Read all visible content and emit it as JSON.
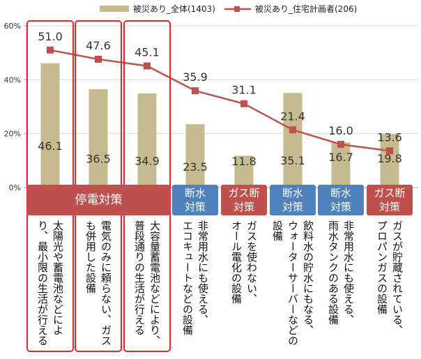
{
  "legend": {
    "bar_label": "被災あり_全体(1403)",
    "line_label": "被災あり_住宅計画者(206)"
  },
  "colors": {
    "bar": "#c6bb8e",
    "line": "#c0504d",
    "power_group": "#c0504d",
    "water_group": "#4f81bd",
    "gas_group": "#c0504d",
    "highlight_border": "#e8232a"
  },
  "groups": [
    {
      "label": "停電対策"
    },
    {
      "label": "断水\n対策"
    },
    {
      "label": "ガス断\n対策"
    },
    {
      "label": "断水\n対策"
    },
    {
      "label": "断水\n対策"
    },
    {
      "label": "ガス断\n対策"
    }
  ],
  "descriptions": [
    "太陽光や蓄電池などによ\nり、最小限の生活が行える",
    "電気のみに頼らない、ガス\nも併用した設備",
    "大容量蓄電池などにより、\n普段通りの生活が行える",
    "非常用水にも使える、\nエコキュートなどの設備",
    "ガスを使わない、\nオール電化の設備",
    "飲料水の貯水にもなる、\nウォーターサーバーなどの\n設備",
    "非常用水にも使える、\n雨水タンクのある設備",
    "ガスが貯蔵されている、\nプロパンガスの設備"
  ],
  "chart_data": {
    "type": "bar",
    "categories": [
      "太陽光や蓄電池などにより、最小限の生活が行える",
      "電気のみに頼らない、ガスも併用した設備",
      "大容量蓄電池などにより、普段通りの生活が行える",
      "非常用水にも使える、エコキュートなどの設備",
      "ガスを使わない、オール電化の設備",
      "飲料水の貯水にもなる、ウォーターサーバーなどの設備",
      "非常用水にも使える、雨水タンクのある設備",
      "ガスが貯蔵されている、プロパンガスの設備"
    ],
    "series": [
      {
        "name": "被災あり_全体(1403)",
        "kind": "bar",
        "values": [
          46.1,
          36.5,
          34.9,
          23.5,
          11.8,
          35.1,
          16.7,
          19.8
        ],
        "labels": [
          "46.1",
          "36.5",
          "34.9",
          "23.5",
          "11.8",
          "35.1",
          "16.7",
          "19.8"
        ]
      },
      {
        "name": "被災あり_住宅計画者(206)",
        "kind": "line",
        "values": [
          51.0,
          47.6,
          45.1,
          35.9,
          31.1,
          21.4,
          16.0,
          13.6
        ],
        "labels": [
          "51.0",
          "47.6",
          "45.1",
          "35.9",
          "31.1",
          "21.4",
          "16.0",
          "13.6"
        ]
      }
    ],
    "y_ticks": [
      "0%",
      "20%",
      "40%",
      "60%"
    ],
    "ylim": [
      0,
      60
    ],
    "group_spans": [
      [
        0,
        2
      ],
      [
        3,
        3
      ],
      [
        4,
        4
      ],
      [
        5,
        5
      ],
      [
        6,
        6
      ],
      [
        7,
        7
      ]
    ],
    "highlighted": [
      0,
      1,
      2
    ],
    "legend_position": "top"
  }
}
